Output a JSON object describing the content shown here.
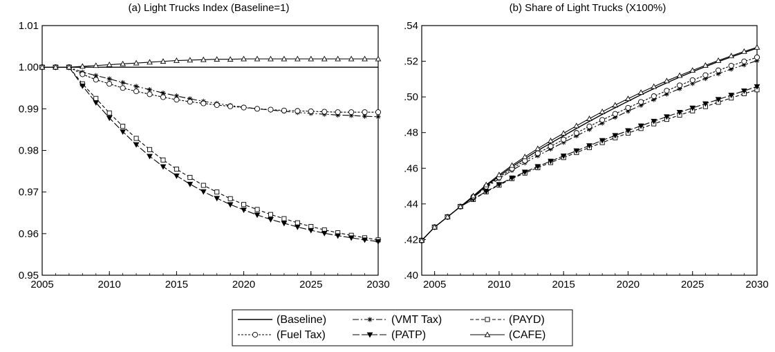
{
  "chart_data": [
    {
      "type": "line",
      "title": "(a) Light Trucks Index (Baseline=1)",
      "xlabel": "",
      "ylabel": "",
      "xlim": [
        2005,
        2030
      ],
      "ylim": [
        0.95,
        1.01
      ],
      "xticks": [
        "2005",
        "2010",
        "2015",
        "2020",
        "2025",
        "2030"
      ],
      "yticks": [
        "0.95",
        "0.96",
        "0.97",
        "0.98",
        "0.99",
        "1.00",
        "1.01"
      ],
      "x": [
        2005,
        2006,
        2007,
        2008,
        2009,
        2010,
        2011,
        2012,
        2013,
        2014,
        2015,
        2016,
        2017,
        2018,
        2019,
        2020,
        2021,
        2022,
        2023,
        2024,
        2025,
        2026,
        2027,
        2028,
        2029,
        2030
      ],
      "series": [
        {
          "name": "(Baseline)",
          "key": "baseline",
          "color": "#000000",
          "values": [
            1,
            1,
            1,
            1,
            1,
            1,
            1,
            1,
            1,
            1,
            1,
            1,
            1,
            1,
            1,
            1,
            1,
            1,
            1,
            1,
            1,
            1,
            1,
            1,
            1,
            1
          ]
        },
        {
          "name": "(VMT Tax)",
          "key": "vmt",
          "color": "#000000",
          "values": [
            1,
            1,
            1,
            0.9988,
            0.998,
            0.9972,
            0.9963,
            0.9954,
            0.9946,
            0.9938,
            0.9931,
            0.9924,
            0.9918,
            0.9913,
            0.9908,
            0.9904,
            0.99,
            0.9897,
            0.9894,
            0.9891,
            0.9889,
            0.9887,
            0.9885,
            0.9884,
            0.9882,
            0.9881
          ]
        },
        {
          "name": "(PAYD)",
          "key": "payd",
          "color": "#000000",
          "values": [
            1,
            1,
            1,
            0.996,
            0.9925,
            0.989,
            0.9858,
            0.9829,
            0.9802,
            0.9777,
            0.9755,
            0.9735,
            0.9716,
            0.97,
            0.9684,
            0.967,
            0.9658,
            0.9646,
            0.9636,
            0.9626,
            0.9617,
            0.9609,
            0.9602,
            0.9596,
            0.959,
            0.9585
          ]
        },
        {
          "name": "(Fuel Tax)",
          "key": "fuel",
          "color": "#000000",
          "values": [
            1,
            1,
            1,
            0.9983,
            0.997,
            0.996,
            0.995,
            0.9942,
            0.9935,
            0.9928,
            0.9922,
            0.9917,
            0.9913,
            0.9909,
            0.9906,
            0.9903,
            0.99,
            0.9898,
            0.9896,
            0.9895,
            0.9894,
            0.9893,
            0.9892,
            0.9892,
            0.9892,
            0.9892
          ]
        },
        {
          "name": "(PATP)",
          "key": "patp",
          "color": "#000000",
          "values": [
            1,
            1,
            1,
            0.9955,
            0.9915,
            0.9878,
            0.9845,
            0.9814,
            0.9786,
            0.9761,
            0.9739,
            0.9719,
            0.9701,
            0.9685,
            0.967,
            0.9657,
            0.9645,
            0.9634,
            0.9625,
            0.9616,
            0.9608,
            0.9601,
            0.9595,
            0.959,
            0.9585,
            0.9581
          ]
        },
        {
          "name": "(CAFE)",
          "key": "cafe",
          "color": "#000000",
          "values": [
            1,
            1,
            1,
            1.0002,
            1.0004,
            1.0006,
            1.0008,
            1.001,
            1.0012,
            1.0014,
            1.0016,
            1.0017,
            1.0018,
            1.0019,
            1.0019,
            1.002,
            1.002,
            1.002,
            1.002,
            1.002,
            1.002,
            1.002,
            1.002,
            1.002,
            1.002,
            1.002
          ]
        }
      ]
    },
    {
      "type": "line",
      "title": "(b) Share of Light Trucks (X100%)",
      "xlabel": "",
      "ylabel": "",
      "xlim": [
        2004,
        2030
      ],
      "ylim": [
        0.4,
        0.54
      ],
      "xticks": [
        "2005",
        "2010",
        "2015",
        "2020",
        "2025",
        "2030"
      ],
      "yticks": [
        ".40",
        ".42",
        ".44",
        ".46",
        ".48",
        ".50",
        ".52",
        ".54"
      ],
      "x": [
        2004,
        2005,
        2006,
        2007,
        2008,
        2009,
        2010,
        2011,
        2012,
        2013,
        2014,
        2015,
        2016,
        2017,
        2018,
        2019,
        2020,
        2021,
        2022,
        2023,
        2024,
        2025,
        2026,
        2027,
        2028,
        2029,
        2030
      ],
      "series": [
        {
          "name": "(Baseline)",
          "key": "baseline",
          "color": "#000000",
          "values": [
            0.4195,
            0.427,
            0.4327,
            0.4385,
            0.4442,
            0.4502,
            0.4556,
            0.4608,
            0.4654,
            0.4699,
            0.4741,
            0.4782,
            0.4823,
            0.4863,
            0.4902,
            0.4939,
            0.4976,
            0.5012,
            0.5046,
            0.5079,
            0.5111,
            0.5141,
            0.517,
            0.5198,
            0.5224,
            0.5249,
            0.5273
          ]
        },
        {
          "name": "(VMT Tax)",
          "key": "vmt",
          "color": "#000000",
          "values": [
            0.4195,
            0.427,
            0.4327,
            0.4385,
            0.4437,
            0.4492,
            0.4541,
            0.4588,
            0.463,
            0.467,
            0.4708,
            0.4745,
            0.4782,
            0.4818,
            0.4853,
            0.4886,
            0.492,
            0.4953,
            0.4985,
            0.5016,
            0.5046,
            0.5075,
            0.5103,
            0.513,
            0.5156,
            0.518,
            0.5203
          ]
        },
        {
          "name": "(PAYD)",
          "key": "payd",
          "color": "#000000",
          "values": [
            0.4195,
            0.427,
            0.4327,
            0.4385,
            0.4425,
            0.4468,
            0.4505,
            0.4542,
            0.4573,
            0.4603,
            0.4632,
            0.466,
            0.4688,
            0.4716,
            0.4744,
            0.4771,
            0.4797,
            0.4823,
            0.4849,
            0.4874,
            0.4898,
            0.4922,
            0.4946,
            0.497,
            0.4994,
            0.5018,
            0.504
          ]
        },
        {
          "name": "(Fuel Tax)",
          "key": "fuel",
          "color": "#000000",
          "values": [
            0.4195,
            0.427,
            0.4327,
            0.4385,
            0.444,
            0.4497,
            0.4549,
            0.4598,
            0.4642,
            0.4684,
            0.4723,
            0.4761,
            0.4798,
            0.4835,
            0.4871,
            0.4905,
            0.4939,
            0.4972,
            0.5004,
            0.5035,
            0.5065,
            0.5094,
            0.5122,
            0.5149,
            0.5175,
            0.5199,
            0.5222
          ]
        },
        {
          "name": "(PATP)",
          "key": "patp",
          "color": "#000000",
          "values": [
            0.4195,
            0.427,
            0.4327,
            0.4385,
            0.4427,
            0.447,
            0.4509,
            0.4546,
            0.4579,
            0.461,
            0.464,
            0.4669,
            0.4698,
            0.4727,
            0.4756,
            0.4784,
            0.4811,
            0.4838,
            0.4864,
            0.4889,
            0.4914,
            0.4938,
            0.4962,
            0.4986,
            0.501,
            0.5034,
            0.5058
          ]
        },
        {
          "name": "(CAFE)",
          "key": "cafe",
          "color": "#000000",
          "values": [
            0.4195,
            0.427,
            0.4327,
            0.4385,
            0.4445,
            0.4507,
            0.4563,
            0.4616,
            0.4664,
            0.471,
            0.4754,
            0.4796,
            0.4838,
            0.4878,
            0.4917,
            0.4954,
            0.499,
            0.5025,
            0.5058,
            0.509,
            0.512,
            0.5149,
            0.5177,
            0.5204,
            0.523,
            0.5255,
            0.5278
          ]
        }
      ]
    }
  ],
  "legend": {
    "placement": "bottom-center",
    "entries": [
      {
        "label": "(Baseline)",
        "style": "solid",
        "marker": "none"
      },
      {
        "label": "(VMT Tax)",
        "style": "dashdot",
        "marker": "asterisk"
      },
      {
        "label": "(PAYD)",
        "style": "dashed",
        "marker": "square"
      },
      {
        "label": "(Fuel Tax)",
        "style": "dotted",
        "marker": "circle"
      },
      {
        "label": "(PATP)",
        "style": "longdash",
        "marker": "triangle-down"
      },
      {
        "label": "(CAFE)",
        "style": "solid",
        "marker": "triangle-up"
      }
    ]
  }
}
